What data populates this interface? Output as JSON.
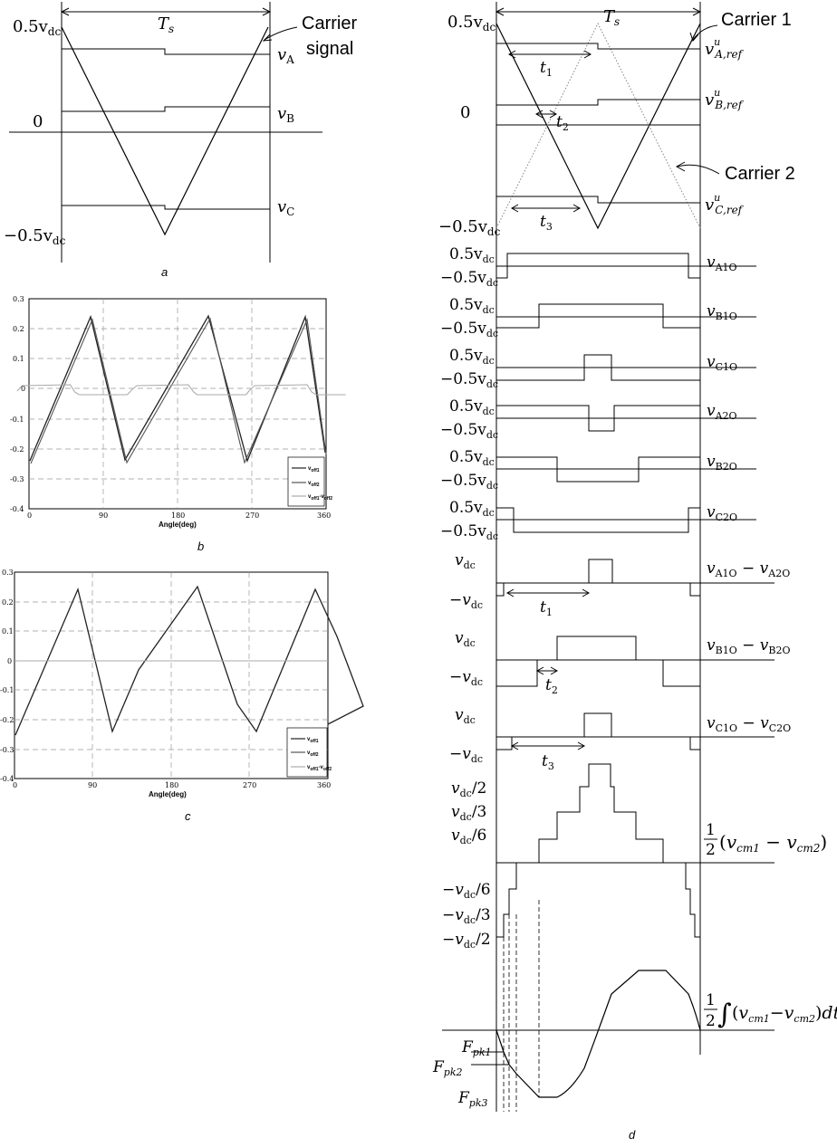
{
  "panel_a": {
    "caption": "a",
    "ts": "T",
    "ts_sub": "s",
    "top": "0.5v",
    "bottom": "−0.5v",
    "dc": "dc",
    "zero": "0",
    "carrier_l1": "Carrier",
    "carrier_l2": "signal",
    "va": "v",
    "va_sub": "A",
    "vb": "v",
    "vb_sub": "B",
    "vc": "v",
    "vc_sub": "C"
  },
  "panel_b": {
    "caption": "b",
    "xlabel": "Angle(deg)",
    "yticks": [
      "0.3",
      "0.2",
      "0.1",
      "0",
      "-0.1",
      "-0.2",
      "-0.3",
      "-0.4"
    ],
    "xticks": [
      "0",
      "90",
      "180",
      "270",
      "360"
    ],
    "legend": [
      {
        "base": "v",
        "sub": "off1"
      },
      {
        "base": "v",
        "sub": "off2"
      },
      {
        "base": "v",
        "sub": "off1",
        "sep": "-v",
        "sub2": "off2"
      }
    ]
  },
  "panel_c": {
    "caption": "c",
    "xlabel": "Angle(deg)",
    "yticks": [
      "0.3",
      "0.2",
      "0.1",
      "0",
      "-0.1",
      "-0.2",
      "-0.3",
      "-0.4"
    ],
    "xticks": [
      "0",
      "90",
      "180",
      "270",
      "360"
    ],
    "legend": [
      {
        "base": "v",
        "sub": "off1"
      },
      {
        "base": "v",
        "sub": "off2"
      },
      {
        "base": "v",
        "sub": "off1",
        "sep": "-v",
        "sub2": "off2"
      }
    ]
  },
  "panel_d": {
    "caption": "d",
    "ts": "T",
    "ts_sub": "s",
    "top": "0.5v",
    "bottom": "−0.5v",
    "dc": "dc",
    "zero": "0",
    "carrier1": "Carrier 1",
    "carrier2": "Carrier 2",
    "ref_a": "A,ref",
    "ref_b": "B,ref",
    "ref_c": "C,ref",
    "ref_sup": "u",
    "t1": "1",
    "t2": "2",
    "t3": "3",
    "pos": "0.5v",
    "neg": "−0.5v",
    "vdc_pos": "v",
    "vdc_neg": "−v",
    "v1": "A1O",
    "v2": "B1O",
    "v3": "C1O",
    "v4": "A2O",
    "v5": "B2O",
    "v6": "C2O",
    "diff1_a": "A1O",
    "diff1_b": "A2O",
    "diff2_a": "B1O",
    "diff2_b": "B2O",
    "diff3_a": "C1O",
    "diff3_b": "C2O",
    "lvl_p2": "/2",
    "lvl_p3": "/3",
    "lvl_p6": "/6",
    "cm_label": "cm1",
    "cm_label2": "cm2",
    "half": "1",
    "half_den": "2",
    "dt": "dt",
    "fpk1": "pk1",
    "fpk2": "pk2",
    "fpk3": "pk3"
  }
}
